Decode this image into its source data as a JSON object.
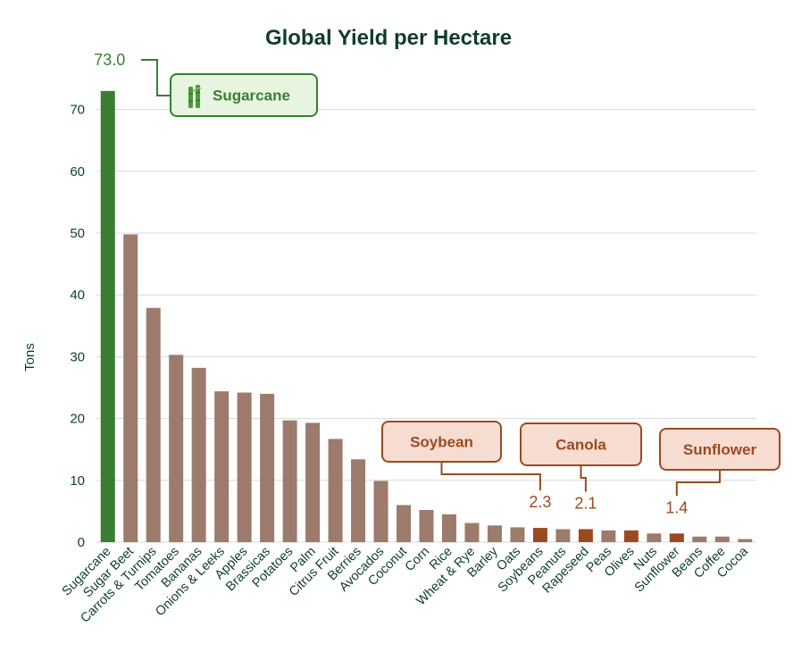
{
  "chart_data": {
    "type": "bar",
    "title": "Global Yield per Hectare",
    "xlabel": "",
    "ylabel": "Tons",
    "ylim": [
      0,
      75
    ],
    "yticks": [
      0,
      10,
      20,
      30,
      40,
      50,
      60,
      70
    ],
    "grid": true,
    "categories": [
      "Sugarcane",
      "Sugar Beet",
      "Carrots & Turnips",
      "Tomatoes",
      "Bananas",
      "Onions & Leeks",
      "Apples",
      "Brassicas",
      "Potatoes",
      "Palm",
      "Citrus Fruit",
      "Berries",
      "Avocados",
      "Coconut",
      "Corn",
      "Rice",
      "Wheat & Rye",
      "Barley",
      "Oats",
      "Soybeans",
      "Peanuts",
      "Rapeseed",
      "Peas",
      "Olives",
      "Nuts",
      "Sunflower",
      "Beans",
      "Coffee",
      "Cocoa"
    ],
    "values": [
      73.0,
      49.8,
      37.9,
      30.3,
      28.2,
      24.4,
      24.2,
      24.0,
      19.7,
      19.3,
      16.7,
      13.4,
      9.9,
      6.0,
      5.2,
      4.5,
      3.1,
      2.7,
      2.4,
      2.3,
      2.1,
      2.1,
      1.9,
      1.9,
      1.4,
      1.4,
      0.9,
      0.9,
      0.5
    ],
    "highlighted": {
      "Sugarcane": "green",
      "Soybeans": "orange",
      "Rapeseed": "orange",
      "Sunflower": "orange",
      "Olives": "orange"
    },
    "value_labels": [
      {
        "category": "Sugarcane",
        "text": "73.0"
      },
      {
        "category": "Soybeans",
        "text": "2.3"
      },
      {
        "category": "Rapeseed",
        "text": "2.1"
      },
      {
        "category": "Sunflower",
        "text": "1.4"
      }
    ],
    "callouts": [
      {
        "category": "Sugarcane",
        "label": "Sugarcane",
        "icon": "sugarcane-icon",
        "style": "green"
      },
      {
        "category": "Soybeans",
        "label": "Soybean",
        "style": "orange"
      },
      {
        "category": "Rapeseed",
        "label": "Canola",
        "style": "orange"
      },
      {
        "category": "Sunflower",
        "label": "Sunflower",
        "style": "orange"
      }
    ]
  },
  "colors": {
    "default_bar": "#9c7b6c",
    "green_bar": "#3a7d35",
    "orange_bar": "#9b4a20",
    "green_text": "#3a7d35",
    "orange_text": "#9b4a20",
    "green_box_fill": "#e6f4e0",
    "green_box_stroke": "#3a7d35",
    "orange_box_fill": "#f7dcd2",
    "orange_box_stroke": "#9b4a20",
    "grid": "#d9d9d9",
    "title": "#0f3d2a"
  }
}
